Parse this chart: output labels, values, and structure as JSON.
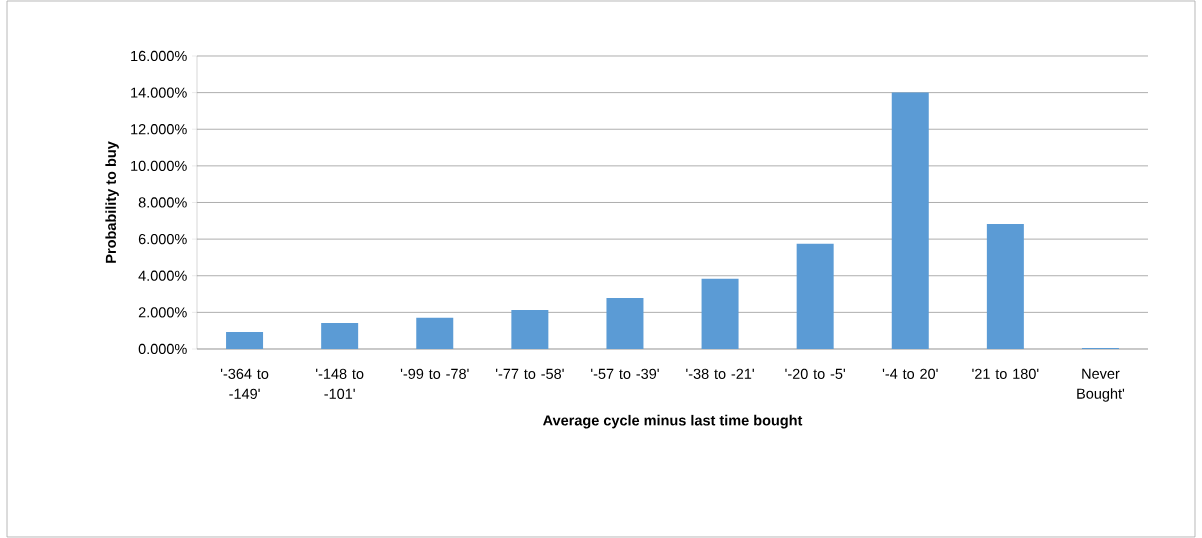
{
  "chart_data": {
    "type": "bar",
    "xlabel": "Average cycle minus last time bought",
    "ylabel": "Probability to buy",
    "categories": [
      "'-364 to -149'",
      "'-148 to -101'",
      "'-99 to -78'",
      "'-77 to -58'",
      "'-57 to -39'",
      "'-38 to -21'",
      "'-20 to -5'",
      "'-4 to 20'",
      "'21 to 180'",
      "Never Bought'"
    ],
    "values": [
      0.93,
      1.42,
      1.7,
      2.13,
      2.79,
      3.83,
      5.74,
      14.0,
      6.83,
      0.05
    ],
    "color": "#5b9bd5",
    "ylim": [
      0,
      16
    ],
    "yticks": [
      {
        "value": 0,
        "label": "0.000%"
      },
      {
        "value": 2,
        "label": "2.000%"
      },
      {
        "value": 4,
        "label": "4.000%"
      },
      {
        "value": 6,
        "label": "6.000%"
      },
      {
        "value": 8,
        "label": "8.000%"
      },
      {
        "value": 10,
        "label": "10.000%"
      },
      {
        "value": 12,
        "label": "12.000%"
      },
      {
        "value": 14,
        "label": "14.000%"
      },
      {
        "value": 16,
        "label": "16.000%"
      }
    ],
    "grid": "y"
  }
}
